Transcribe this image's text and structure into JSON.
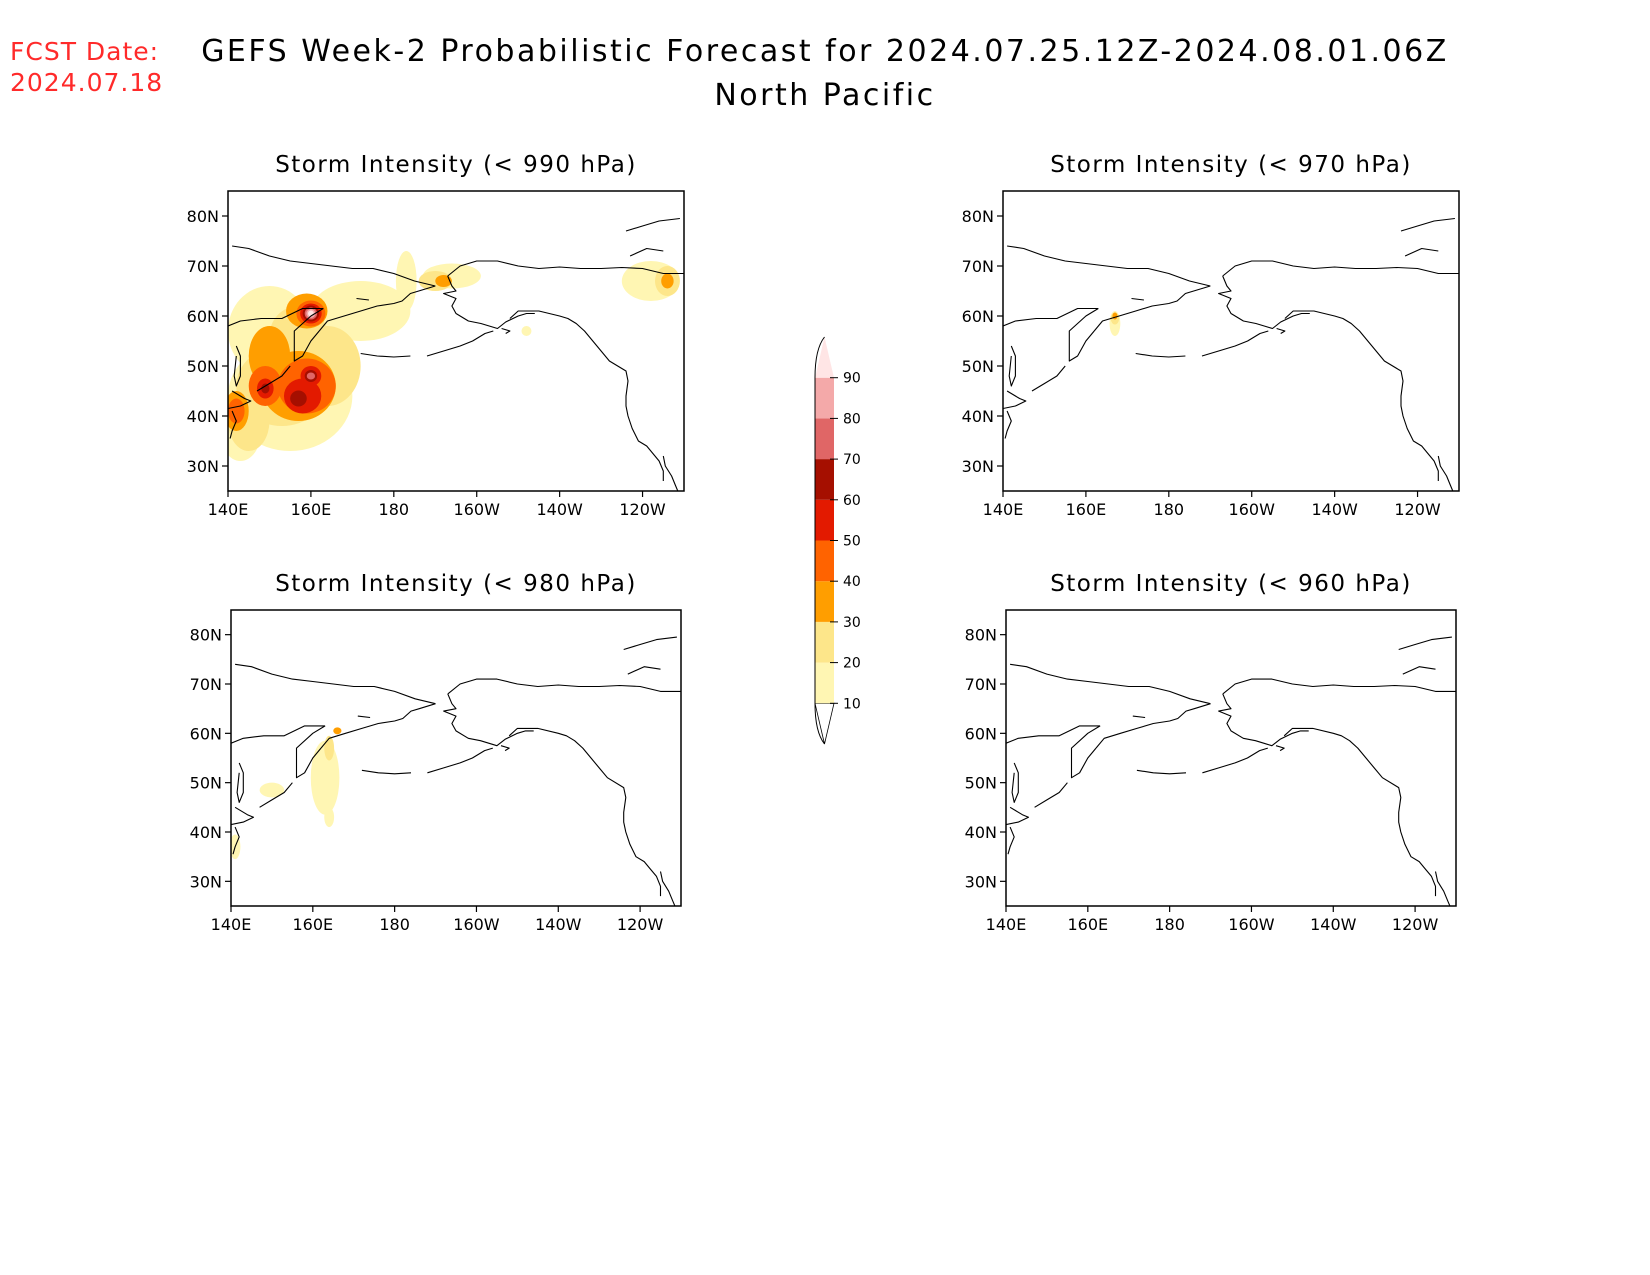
{
  "header": {
    "fcst_label": "FCST Date:",
    "fcst_date": "2024.07.18",
    "title": "GEFS Week-2 Probabilistic Forecast for 2024.07.25.12Z-2024.08.01.06Z",
    "subtitle": "North Pacific"
  },
  "map_extent": {
    "lon_min": 140,
    "lon_max": 250,
    "lat_min": 25,
    "lat_max": 85
  },
  "axes": {
    "lat_ticks": [
      {
        "lat": 30,
        "label": "30N"
      },
      {
        "lat": 40,
        "label": "40N"
      },
      {
        "lat": 50,
        "label": "50N"
      },
      {
        "lat": 60,
        "label": "60N"
      },
      {
        "lat": 70,
        "label": "70N"
      },
      {
        "lat": 80,
        "label": "80N"
      }
    ],
    "lon_ticks": [
      {
        "lon": 140,
        "label": "140E"
      },
      {
        "lon": 160,
        "label": "160E"
      },
      {
        "lon": 180,
        "label": "180"
      },
      {
        "lon": 200,
        "label": "160W"
      },
      {
        "lon": 220,
        "label": "140W"
      },
      {
        "lon": 240,
        "label": "120W"
      }
    ]
  },
  "panels": [
    {
      "id": "p990",
      "title": "Storm Intensity (< 990 hPa)",
      "blobs": [
        {
          "lon": 150,
          "lat": 57,
          "rx": 10,
          "ry": 9,
          "level": 10
        },
        {
          "lon": 155,
          "lat": 44,
          "rx": 15,
          "ry": 11,
          "level": 10
        },
        {
          "lon": 172,
          "lat": 61,
          "rx": 12,
          "ry": 6,
          "level": 10
        },
        {
          "lon": 143,
          "lat": 37,
          "rx": 5,
          "ry": 6,
          "level": 10
        },
        {
          "lon": 183,
          "lat": 67,
          "rx": 2.5,
          "ry": 6,
          "level": 10
        },
        {
          "lon": 194,
          "lat": 68,
          "rx": 7,
          "ry": 2.5,
          "level": 10
        },
        {
          "lon": 242,
          "lat": 67,
          "rx": 7,
          "ry": 4,
          "level": 10
        },
        {
          "lon": 212,
          "lat": 57,
          "rx": 1.2,
          "ry": 1,
          "level": 10
        },
        {
          "lon": 190,
          "lat": 67,
          "rx": 4,
          "ry": 2,
          "level": 20
        },
        {
          "lon": 246,
          "lat": 67,
          "rx": 3,
          "ry": 3,
          "level": 20
        },
        {
          "lon": 157,
          "lat": 56,
          "rx": 7,
          "ry": 6,
          "level": 20
        },
        {
          "lon": 153,
          "lat": 46,
          "rx": 11,
          "ry": 8,
          "level": 20
        },
        {
          "lon": 145,
          "lat": 39,
          "rx": 5,
          "ry": 6,
          "level": 20
        },
        {
          "lon": 164,
          "lat": 50,
          "rx": 8,
          "ry": 8,
          "level": 20
        },
        {
          "lon": 150,
          "lat": 52,
          "rx": 5,
          "ry": 6,
          "level": 30
        },
        {
          "lon": 157,
          "lat": 46,
          "rx": 9,
          "ry": 7,
          "level": 30
        },
        {
          "lon": 142,
          "lat": 41,
          "rx": 3,
          "ry": 4,
          "level": 30
        },
        {
          "lon": 159,
          "lat": 61,
          "rx": 5,
          "ry": 3.5,
          "level": 30
        },
        {
          "lon": 192,
          "lat": 67,
          "rx": 2,
          "ry": 1.2,
          "level": 30
        },
        {
          "lon": 246,
          "lat": 67,
          "rx": 1.5,
          "ry": 1.5,
          "level": 30
        },
        {
          "lon": 159,
          "lat": 46,
          "rx": 7,
          "ry": 5.5,
          "level": 40
        },
        {
          "lon": 149,
          "lat": 46,
          "rx": 4,
          "ry": 4,
          "level": 40
        },
        {
          "lon": 160,
          "lat": 60.5,
          "rx": 3.5,
          "ry": 2.6,
          "level": 40
        },
        {
          "lon": 142,
          "lat": 41,
          "rx": 2,
          "ry": 2.5,
          "level": 40
        },
        {
          "lon": 158,
          "lat": 44,
          "rx": 4.5,
          "ry": 3.5,
          "level": 50
        },
        {
          "lon": 149,
          "lat": 45.5,
          "rx": 2,
          "ry": 2,
          "level": 50
        },
        {
          "lon": 160,
          "lat": 60.5,
          "rx": 2.6,
          "ry": 2,
          "level": 50
        },
        {
          "lon": 160,
          "lat": 48,
          "rx": 2.5,
          "ry": 2,
          "level": 50
        },
        {
          "lon": 157,
          "lat": 43.5,
          "rx": 2,
          "ry": 1.6,
          "level": 60
        },
        {
          "lon": 149,
          "lat": 45.5,
          "rx": 1,
          "ry": 1,
          "level": 60
        },
        {
          "lon": 160,
          "lat": 60.5,
          "rx": 2,
          "ry": 1.6,
          "level": 60
        },
        {
          "lon": 160,
          "lat": 48,
          "rx": 1.5,
          "ry": 1.2,
          "level": 60
        },
        {
          "lon": 160,
          "lat": 60.5,
          "rx": 1.5,
          "ry": 1.2,
          "level": 70
        },
        {
          "lon": 160,
          "lat": 48,
          "rx": 1,
          "ry": 0.7,
          "level": 70
        },
        {
          "lon": 160,
          "lat": 60.5,
          "rx": 1.1,
          "ry": 0.9,
          "level": 80
        },
        {
          "lon": 160,
          "lat": 60.5,
          "rx": 0.7,
          "ry": 0.6,
          "level": 90
        }
      ]
    },
    {
      "id": "p970",
      "title": "Storm Intensity (< 970 hPa)",
      "blobs": [
        {
          "lon": 167,
          "lat": 58.5,
          "rx": 1.3,
          "ry": 2.5,
          "level": 10
        },
        {
          "lon": 167,
          "lat": 59.5,
          "rx": 1,
          "ry": 1.2,
          "level": 20
        },
        {
          "lon": 167,
          "lat": 60,
          "rx": 0.6,
          "ry": 0.7,
          "level": 30
        }
      ]
    },
    {
      "id": "p980",
      "title": "Storm Intensity (< 980 hPa)",
      "blobs": [
        {
          "lon": 163,
          "lat": 51,
          "rx": 3.5,
          "ry": 7.5,
          "level": 10
        },
        {
          "lon": 150,
          "lat": 48.5,
          "rx": 3,
          "ry": 1.5,
          "level": 10
        },
        {
          "lon": 141,
          "lat": 37,
          "rx": 1.3,
          "ry": 2.5,
          "level": 10
        },
        {
          "lon": 164,
          "lat": 43,
          "rx": 1.2,
          "ry": 2,
          "level": 10
        },
        {
          "lon": 164,
          "lat": 57,
          "rx": 1.2,
          "ry": 2.5,
          "level": 20
        },
        {
          "lon": 166,
          "lat": 60.5,
          "rx": 1,
          "ry": 0.7,
          "level": 30
        }
      ]
    },
    {
      "id": "p960",
      "title": "Storm Intensity (< 960 hPa)",
      "blobs": []
    }
  ],
  "colorbar": {
    "ticks": [
      "10",
      "20",
      "30",
      "40",
      "50",
      "60",
      "70",
      "80",
      "90"
    ],
    "colors": [
      "#ffffff",
      "#fff6b3",
      "#fde68a",
      "#ff9e00",
      "#ff6300",
      "#e31a00",
      "#a50f00",
      "#e06666",
      "#f4a9a9",
      "#ffe5e5"
    ]
  },
  "coastlines": {
    "eurasia_north": [
      [
        141,
        74
      ],
      [
        145,
        73.5
      ],
      [
        150,
        72
      ],
      [
        155,
        71
      ],
      [
        160,
        70.5
      ],
      [
        165,
        70
      ],
      [
        170,
        69.5
      ],
      [
        175,
        69.5
      ],
      [
        180,
        68.5
      ],
      [
        185,
        67
      ],
      [
        190,
        66
      ]
    ],
    "chukotka_east": [
      [
        190,
        66
      ],
      [
        186,
        65
      ],
      [
        184,
        64.5
      ],
      [
        182,
        63
      ],
      [
        180,
        62.5
      ],
      [
        176,
        62
      ],
      [
        172,
        61
      ],
      [
        168,
        60
      ],
      [
        164,
        59
      ],
      [
        162,
        57
      ]
    ],
    "kamchatka": [
      [
        162,
        57
      ],
      [
        160,
        55
      ],
      [
        158,
        52
      ],
      [
        156,
        51
      ],
      [
        156,
        54
      ],
      [
        156,
        57
      ],
      [
        160,
        60
      ],
      [
        163,
        61.5
      ]
    ],
    "okhotsk_north": [
      [
        163,
        61.5
      ],
      [
        158,
        61.5
      ],
      [
        153,
        59.5
      ],
      [
        148,
        59.5
      ],
      [
        143,
        59
      ],
      [
        140,
        58
      ]
    ],
    "sakhalin": [
      [
        142,
        54
      ],
      [
        143,
        52
      ],
      [
        143,
        48
      ],
      [
        142,
        46
      ],
      [
        141.5,
        48
      ],
      [
        142,
        52
      ]
    ],
    "japan_hokkaido": [
      [
        141,
        45
      ],
      [
        144,
        43.5
      ],
      [
        145.5,
        43
      ],
      [
        143,
        42
      ],
      [
        140,
        41.5
      ]
    ],
    "japan_honshu": [
      [
        141,
        41
      ],
      [
        142,
        39
      ],
      [
        141,
        37
      ],
      [
        140.5,
        35.5
      ]
    ],
    "kurils": [
      [
        147,
        45
      ],
      [
        150,
        46.5
      ],
      [
        153,
        48
      ],
      [
        155,
        50
      ]
    ],
    "alaska_north": [
      [
        193,
        68
      ],
      [
        196,
        70
      ],
      [
        200,
        71
      ],
      [
        205,
        71
      ],
      [
        210,
        70
      ],
      [
        215,
        69.5
      ],
      [
        220,
        69.8
      ],
      [
        225,
        69.5
      ],
      [
        230,
        69.5
      ],
      [
        235,
        69.7
      ],
      [
        240,
        69.5
      ],
      [
        245,
        68.5
      ],
      [
        250,
        68.5
      ]
    ],
    "alaska_west": [
      [
        193,
        68
      ],
      [
        194,
        66
      ],
      [
        195,
        65
      ],
      [
        192,
        64.5
      ],
      [
        195,
        63.5
      ],
      [
        194,
        62
      ],
      [
        195,
        60.5
      ],
      [
        198,
        59
      ],
      [
        201,
        58.5
      ],
      [
        203,
        58
      ],
      [
        205,
        57.5
      ],
      [
        207,
        58.8
      ],
      [
        210,
        60
      ],
      [
        212,
        60.5
      ],
      [
        214,
        60.5
      ]
    ],
    "aleutians": [
      [
        188,
        52
      ],
      [
        192,
        53
      ],
      [
        196,
        54
      ],
      [
        199,
        55
      ],
      [
        202,
        56.5
      ],
      [
        204,
        57
      ]
    ],
    "gulf_alaska": [
      [
        208,
        59.5
      ],
      [
        210,
        61
      ],
      [
        215,
        61
      ],
      [
        220,
        60
      ],
      [
        222,
        59.5
      ],
      [
        224,
        58.5
      ],
      [
        226,
        57
      ],
      [
        228,
        55
      ],
      [
        230,
        53
      ],
      [
        232,
        51
      ],
      [
        236,
        49
      ],
      [
        236.5,
        47
      ],
      [
        236,
        44
      ],
      [
        236,
        42
      ],
      [
        236.5,
        40
      ],
      [
        237.5,
        37.5
      ],
      [
        239,
        35
      ],
      [
        241,
        34
      ],
      [
        242.5,
        32.5
      ],
      [
        244,
        31
      ],
      [
        245,
        29
      ],
      [
        245,
        27
      ]
    ],
    "baja": [
      [
        245,
        32
      ],
      [
        245.5,
        30
      ],
      [
        247,
        28
      ],
      [
        248,
        26
      ],
      [
        248.5,
        25
      ]
    ],
    "arctic_islands": [
      [
        236,
        77
      ],
      [
        240,
        78
      ],
      [
        244,
        79
      ],
      [
        249,
        79.5
      ]
    ],
    "banks_island": [
      [
        237,
        72
      ],
      [
        241,
        73.5
      ],
      [
        245,
        73
      ]
    ],
    "bering_islands": [
      [
        171,
        63.5
      ],
      [
        174,
        63.2
      ]
    ],
    "kodiak": [
      [
        206,
        57.5
      ],
      [
        208,
        57
      ],
      [
        207,
        56.5
      ]
    ],
    "aleutian_west": [
      [
        172,
        52.5
      ],
      [
        176,
        52
      ],
      [
        180,
        51.8
      ],
      [
        184,
        52
      ]
    ]
  }
}
